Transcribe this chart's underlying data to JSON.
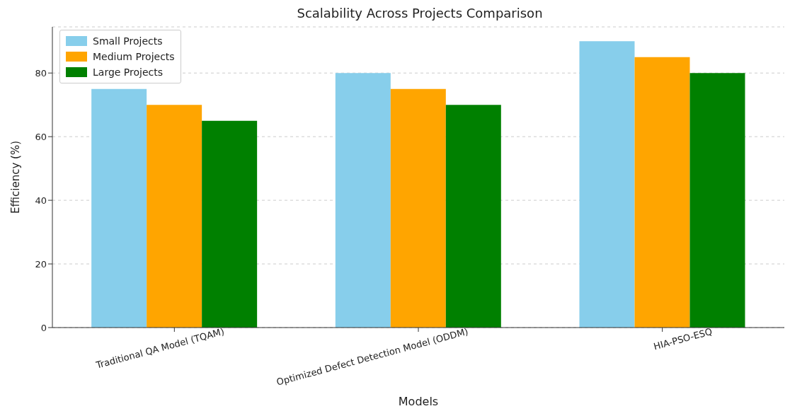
{
  "chart_data": {
    "type": "bar",
    "title": "Scalability Across Projects Comparison",
    "xlabel": "Models",
    "ylabel": "Efficiency (%)",
    "categories": [
      "Traditional QA Model (TQAM)",
      "Optimized Defect Detection Model (ODDM)",
      "HIA-PSO-ESQ"
    ],
    "series": [
      {
        "name": "Small Projects",
        "color": "#87ceeb",
        "values": [
          75,
          80,
          90
        ]
      },
      {
        "name": "Medium Projects",
        "color": "#ffa500",
        "values": [
          70,
          75,
          85
        ]
      },
      {
        "name": "Large Projects",
        "color": "#008000",
        "values": [
          65,
          70,
          80
        ]
      }
    ],
    "ylim": [
      0,
      94.5
    ],
    "yticks": [
      0,
      20,
      40,
      60,
      80
    ],
    "grid": "y",
    "legend": "top left"
  }
}
